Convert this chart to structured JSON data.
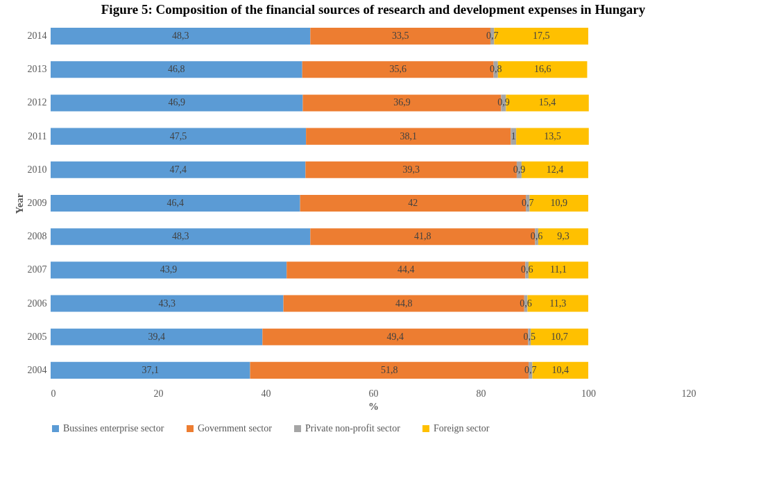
{
  "chart_data": {
    "type": "bar",
    "orientation": "horizontal",
    "stacked": true,
    "title": "Figure 5: Composition of the financial sources of research and development expenses in Hungary",
    "xlabel": "%",
    "ylabel": "Year",
    "categories": [
      "2014",
      "2013",
      "2012",
      "2011",
      "2010",
      "2009",
      "2008",
      "2007",
      "2006",
      "2005",
      "2004"
    ],
    "xlim": [
      0,
      120
    ],
    "xticks": [
      0,
      20,
      40,
      60,
      80,
      100,
      120
    ],
    "legend": "bottom",
    "series": [
      {
        "name": "Bussines enterprise sector",
        "color": "#5b9bd5",
        "values": [
          48.3,
          46.8,
          46.9,
          47.5,
          47.4,
          46.4,
          48.3,
          43.9,
          43.3,
          39.4,
          37.1
        ],
        "value_labels": [
          "48,3",
          "46,8",
          "46,9",
          "47,5",
          "47,4",
          "46,4",
          "48,3",
          "43,9",
          "43,3",
          "39,4",
          "37,1"
        ]
      },
      {
        "name": "Government sector",
        "color": "#ed7d31",
        "values": [
          33.5,
          35.6,
          36.9,
          38.1,
          39.3,
          42,
          41.8,
          44.4,
          44.8,
          49.4,
          51.8
        ],
        "value_labels": [
          "33,5",
          "35,6",
          "36,9",
          "38,1",
          "39,3",
          "42",
          "41,8",
          "44,4",
          "44,8",
          "49,4",
          "51,8"
        ]
      },
      {
        "name": "Private non-profit sector",
        "color": "#a5a5a5",
        "values": [
          0.7,
          0.8,
          0.9,
          1,
          0.9,
          0.7,
          0.6,
          0.6,
          0.6,
          0.5,
          0.7
        ],
        "value_labels": [
          "0,7",
          "0,8",
          "0,9",
          "1",
          "0,9",
          "0,7",
          "0,6",
          "0,6",
          "0,6",
          "0,5",
          "0,7"
        ]
      },
      {
        "name": "Foreign sector",
        "color": "#ffc000",
        "values": [
          17.5,
          16.6,
          15.4,
          13.5,
          12.4,
          10.9,
          9.3,
          11.1,
          11.3,
          10.7,
          10.4
        ],
        "value_labels": [
          "17,5",
          "16,6",
          "15,4",
          "13,5",
          "12,4",
          "10,9",
          "9,3",
          "11,1",
          "11,3",
          "10,7",
          "10,4"
        ]
      }
    ]
  }
}
